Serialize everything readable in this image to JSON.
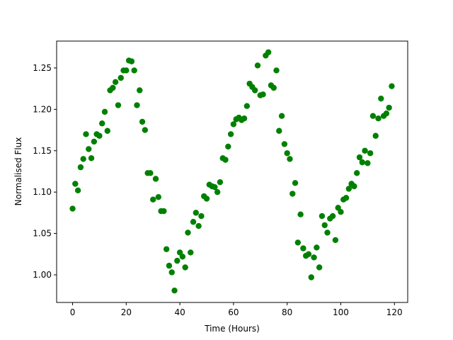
{
  "chart_data": {
    "type": "scatter",
    "color": "#008000",
    "xlabel": "Time (Hours)",
    "ylabel": "Normalised Flux",
    "x": [
      0,
      1,
      2,
      3,
      4,
      5,
      6,
      7,
      8,
      9,
      10,
      11,
      12,
      13,
      14,
      15,
      16,
      17,
      18,
      19,
      20,
      21,
      22,
      23,
      24,
      25,
      26,
      27,
      28,
      29,
      30,
      31,
      32,
      33,
      34,
      35,
      36,
      37,
      38,
      39,
      40,
      41,
      42,
      43,
      44,
      45,
      46,
      47,
      48,
      49,
      50,
      51,
      52,
      53,
      54,
      55,
      56,
      57,
      58,
      59,
      60,
      61,
      62,
      63,
      64,
      65,
      66,
      67,
      68,
      69,
      70,
      71,
      72,
      73,
      74,
      75,
      76,
      77,
      78,
      79,
      80,
      81,
      82,
      83,
      84,
      85,
      86,
      87,
      88,
      89,
      90,
      91,
      92,
      93,
      94,
      95,
      96,
      97,
      98,
      99,
      100,
      101,
      102,
      103,
      104,
      105,
      106,
      107,
      108,
      109,
      110,
      111,
      112,
      113,
      114,
      115,
      116,
      117,
      118,
      119
    ],
    "values": [
      1.08,
      1.11,
      1.102,
      1.13,
      1.14,
      1.17,
      1.152,
      1.141,
      1.161,
      1.17,
      1.168,
      1.183,
      1.197,
      1.174,
      1.223,
      1.226,
      1.233,
      1.205,
      1.238,
      1.247,
      1.247,
      1.259,
      1.258,
      1.247,
      1.205,
      1.223,
      1.185,
      1.175,
      1.123,
      1.123,
      1.091,
      1.116,
      1.094,
      1.077,
      1.077,
      1.031,
      1.011,
      1.003,
      0.981,
      1.017,
      1.027,
      1.022,
      1.009,
      1.051,
      1.027,
      1.064,
      1.075,
      1.059,
      1.071,
      1.095,
      1.092,
      1.109,
      1.107,
      1.106,
      1.1,
      1.112,
      1.141,
      1.139,
      1.155,
      1.17,
      1.182,
      1.188,
      1.19,
      1.187,
      1.189,
      1.204,
      1.231,
      1.227,
      1.223,
      1.253,
      1.217,
      1.218,
      1.265,
      1.269,
      1.229,
      1.226,
      1.247,
      1.174,
      1.192,
      1.158,
      1.147,
      1.14,
      1.098,
      1.111,
      1.039,
      1.073,
      1.032,
      1.023,
      1.025,
      0.997,
      1.021,
      1.033,
      1.009,
      1.071,
      1.06,
      1.051,
      1.068,
      1.071,
      1.042,
      1.081,
      1.076,
      1.091,
      1.093,
      1.104,
      1.11,
      1.107,
      1.123,
      1.142,
      1.136,
      1.15,
      1.135,
      1.147,
      1.192,
      1.168,
      1.189,
      1.213,
      1.192,
      1.195,
      1.202,
      1.228
    ],
    "xlim": [
      -5.95,
      124.95
    ],
    "xticks": [
      0,
      20,
      40,
      60,
      80,
      100,
      120
    ],
    "ylim": [
      0.9666,
      1.2825
    ],
    "yticks": [
      {
        "value": 1.0,
        "label": "1.00"
      },
      {
        "value": 1.05,
        "label": "1.05"
      },
      {
        "value": 1.1,
        "label": "1.10"
      },
      {
        "value": 1.15,
        "label": "1.15"
      },
      {
        "value": 1.2,
        "label": "1.20"
      },
      {
        "value": 1.25,
        "label": "1.25"
      }
    ]
  }
}
